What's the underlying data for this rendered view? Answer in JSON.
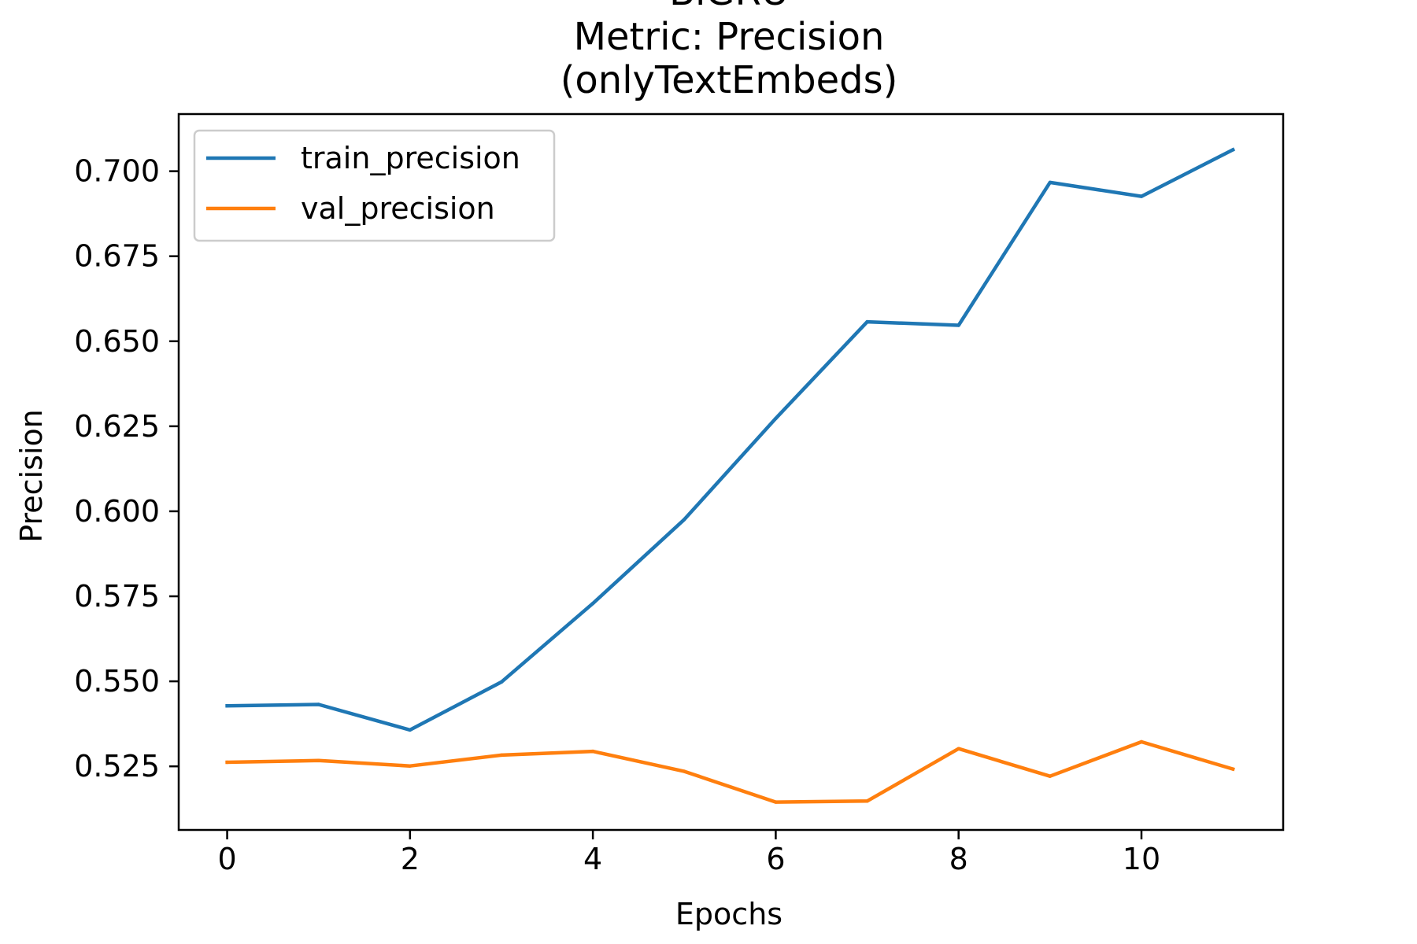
{
  "chart_data": {
    "type": "line",
    "title_lines": [
      "BiGRU",
      "Metric: Precision",
      "(onlyTextEmbeds)"
    ],
    "xlabel": "Epochs",
    "ylabel": "Precision",
    "x": [
      0,
      1,
      2,
      3,
      4,
      5,
      6,
      7,
      8,
      9,
      10,
      11
    ],
    "xlim": [
      -0.53,
      11.55
    ],
    "ylim": [
      0.5063,
      0.7168
    ],
    "xticks": [
      0,
      2,
      4,
      6,
      8,
      10
    ],
    "xtick_labels": [
      "0",
      "2",
      "4",
      "6",
      "8",
      "10"
    ],
    "yticks": [
      0.525,
      0.55,
      0.575,
      0.6,
      0.625,
      0.65,
      0.675,
      0.7
    ],
    "ytick_labels": [
      "0.525",
      "0.550",
      "0.575",
      "0.600",
      "0.625",
      "0.650",
      "0.675",
      "0.700"
    ],
    "grid": false,
    "legend_position": "top-left",
    "series": [
      {
        "name": "train_precision",
        "color": "#1f77b4",
        "values": [
          0.5428,
          0.5432,
          0.5357,
          0.5498,
          0.5729,
          0.5976,
          0.6273,
          0.6557,
          0.6547,
          0.6967,
          0.6926,
          0.7063
        ]
      },
      {
        "name": "val_precision",
        "color": "#ff7f0e",
        "values": [
          0.5262,
          0.5267,
          0.5251,
          0.5283,
          0.5294,
          0.5235,
          0.5145,
          0.5148,
          0.5302,
          0.5221,
          0.5322,
          0.5242
        ]
      }
    ]
  }
}
